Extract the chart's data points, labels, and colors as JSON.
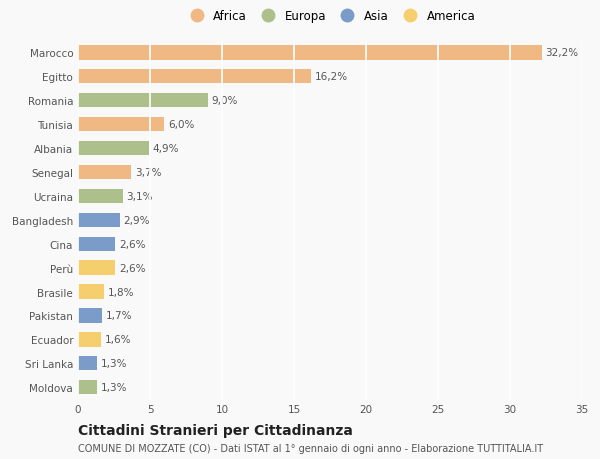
{
  "categories": [
    "Marocco",
    "Egitto",
    "Romania",
    "Tunisia",
    "Albania",
    "Senegal",
    "Ucraina",
    "Bangladesh",
    "Cina",
    "Perù",
    "Brasile",
    "Pakistan",
    "Ecuador",
    "Sri Lanka",
    "Moldova"
  ],
  "values": [
    32.2,
    16.2,
    9.0,
    6.0,
    4.9,
    3.7,
    3.1,
    2.9,
    2.6,
    2.6,
    1.8,
    1.7,
    1.6,
    1.3,
    1.3
  ],
  "labels": [
    "32,2%",
    "16,2%",
    "9,0%",
    "6,0%",
    "4,9%",
    "3,7%",
    "3,1%",
    "2,9%",
    "2,6%",
    "2,6%",
    "1,8%",
    "1,7%",
    "1,6%",
    "1,3%",
    "1,3%"
  ],
  "colors": [
    "#F0B983",
    "#F0B983",
    "#ADBF8A",
    "#F0B983",
    "#ADBF8A",
    "#F0B983",
    "#ADBF8A",
    "#7B9BC8",
    "#7B9BC8",
    "#F5CE6E",
    "#F5CE6E",
    "#7B9BC8",
    "#F5CE6E",
    "#7B9BC8",
    "#ADBF8A"
  ],
  "legend_labels": [
    "Africa",
    "Europa",
    "Asia",
    "America"
  ],
  "legend_colors": [
    "#F0B983",
    "#ADBF8A",
    "#7B9BC8",
    "#F5CE6E"
  ],
  "xlim": [
    0,
    35
  ],
  "xticks": [
    0,
    5,
    10,
    15,
    20,
    25,
    30,
    35
  ],
  "title": "Cittadini Stranieri per Cittadinanza",
  "subtitle": "COMUNE DI MOZZATE (CO) - Dati ISTAT al 1° gennaio di ogni anno - Elaborazione TUTTITALIA.IT",
  "background_color": "#f9f9f9",
  "grid_color": "#ffffff",
  "bar_height": 0.6,
  "label_fontsize": 7.5,
  "tick_fontsize": 7.5,
  "title_fontsize": 10,
  "subtitle_fontsize": 7
}
